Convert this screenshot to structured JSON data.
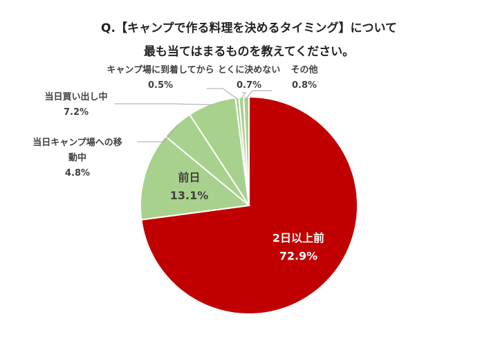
{
  "chart_data": {
    "type": "pie",
    "title": [
      "Q.【キャンプで作る料理を決めるタイミング】について",
      "最も当てはまるものを教えてください。"
    ],
    "start_angle_deg": 0,
    "direction": "clockwise",
    "slices": [
      {
        "name": "2日以上前",
        "value": 72.9,
        "label": "72.9%",
        "color": "#c00000"
      },
      {
        "name": "前日",
        "value": 13.1,
        "label": "13.1%",
        "color": "#a9d18e"
      },
      {
        "name": "当日キャンプ場への移動中",
        "value": 4.8,
        "label": "4.8%",
        "color": "#a9d18e"
      },
      {
        "name": "当日買い出し中",
        "value": 7.2,
        "label": "7.2%",
        "color": "#a9d18e"
      },
      {
        "name": "キャンプ場に到着してから",
        "value": 0.5,
        "label": "0.5%",
        "color": "#a9d18e"
      },
      {
        "name": "とくに決めない",
        "value": 0.7,
        "label": "0.7%",
        "color": "#a9d18e"
      },
      {
        "name": "その他",
        "value": 0.8,
        "label": "0.8%",
        "color": "#a9d18e"
      }
    ],
    "legend": "none"
  }
}
